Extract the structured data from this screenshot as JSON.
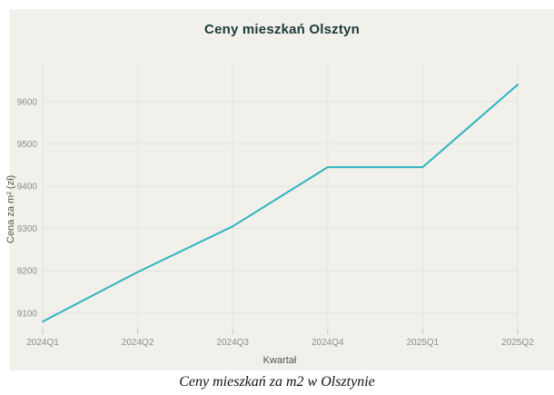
{
  "page": {
    "caption": "Ceny mieszkań za m2 w Olsztynie"
  },
  "chart_data": {
    "type": "line",
    "title": "Ceny mieszkań Olsztyn",
    "xlabel": "Kwartał",
    "ylabel": "Cena za m² (zł)",
    "categories": [
      "2024Q1",
      "2024Q2",
      "2024Q3",
      "2024Q4",
      "2025Q1",
      "2025Q2"
    ],
    "series": [
      {
        "name": "Cena za m2",
        "values": [
          9080,
          9197,
          9305,
          9445,
          9445,
          9640
        ]
      }
    ],
    "yticks": [
      9100,
      9200,
      9300,
      9400,
      9500,
      9600
    ],
    "ylim": [
      9063,
      9690
    ],
    "grid": true,
    "legend": "none",
    "colors": {
      "line": "#2fb4c2",
      "card_bg": "#f1f0ea",
      "grid": "#e4e3dd",
      "tick_mark": "#c9c8c2",
      "tick_text": "#8e8e88",
      "axis_text": "#55554e",
      "title_text": "#1d3b3d"
    }
  }
}
